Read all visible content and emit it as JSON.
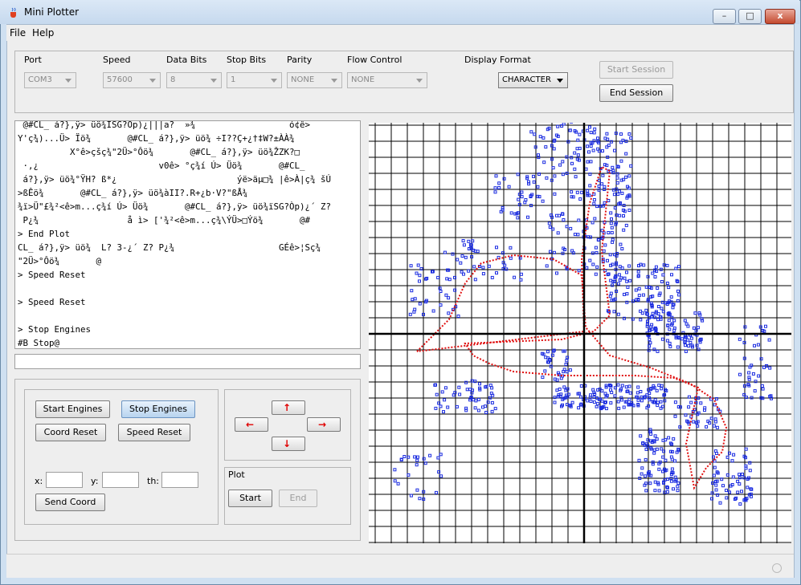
{
  "window": {
    "title": "Mini Plotter",
    "minimize": "–",
    "maximize": "□",
    "close": "x"
  },
  "menu": [
    "File",
    "Help"
  ],
  "config": {
    "labels": {
      "port": "Port",
      "speed": "Speed",
      "data_bits": "Data Bits",
      "stop_bits": "Stop Bits",
      "parity": "Parity",
      "flow_control": "Flow Control",
      "display_format": "Display Format"
    },
    "values": {
      "port": "COM3",
      "speed": "57600",
      "data_bits": "8",
      "stop_bits": "1",
      "parity": "NONE",
      "flow_control": "NONE",
      "display_format": "CHARACTER"
    },
    "start_session": "Start Session",
    "end_session": "End Session"
  },
  "console": {
    "text": " @#CL_ á?},ÿ> üö¾ISG?Op)¿|||a?  »¾                  ó¢ê>\nY'ç¾)...Ü> Ïö¾       @#CL_ á?},ÿ> üö¾ ÷I??Ç+¿†‡W?±ÀÀ¾\n          X°ê>çšç¾\"2Ü>°Ôö¾       @#CL_ á?},ÿ> üö¾ŽZK?□\n ·,¿                       v0ê> °ç¾í Ú> Üö¾       @#CL_\n á?},ÿ> üö¾°ŸH? ß*¿                       ýë>äµ□¾ |ê>À|ç¾ šÚ\n>ßÊö¾       @#CL_ á?},ÿ> üö¾àII?.R+¿b·V?\"ßÅ¾\n¾ï>Ü\"£¾²<ê>m...ç¾í Ú> Üö¾       @#CL_ á?},ÿ> üö¾ïSG?Òp)¿´ Z?\n P¿¾                 å ì> ['¾²<ê>m...ç¾\\ÝÜ>□Ýö¾       @#\n> End Plot\nCL_ á?},ÿ> üö¾  L? 3-¿´ Z? P¿¾                    GÉê>¦Sç¾\n\"2Ü>°Ôö¾       @\n> Speed Reset\n\n> Speed Reset\n\n> Stop Engines\n#B Stop@",
    "input_value": ""
  },
  "controls": {
    "start_engines": "Start Engines",
    "stop_engines": "Stop Engines",
    "coord_reset": "Coord Reset",
    "speed_reset": "Speed Reset",
    "x_label": "x:",
    "y_label": "y:",
    "th_label": "th:",
    "x_value": "",
    "y_value": "",
    "th_value": "",
    "send_coord": "Send Coord"
  },
  "arrows": {
    "up": "↑",
    "left": "←",
    "right": "→",
    "down": "↓"
  },
  "plot": {
    "title": "Plot",
    "start": "Start",
    "end": "End"
  },
  "colors": {
    "scan_points": "#1a2be0",
    "path": "#e01010",
    "grid": "#000000",
    "arrow_glyph": "#e00000"
  },
  "canvas": {
    "grid_step": 20,
    "axis_x": 268,
    "axis_y": 263
  }
}
